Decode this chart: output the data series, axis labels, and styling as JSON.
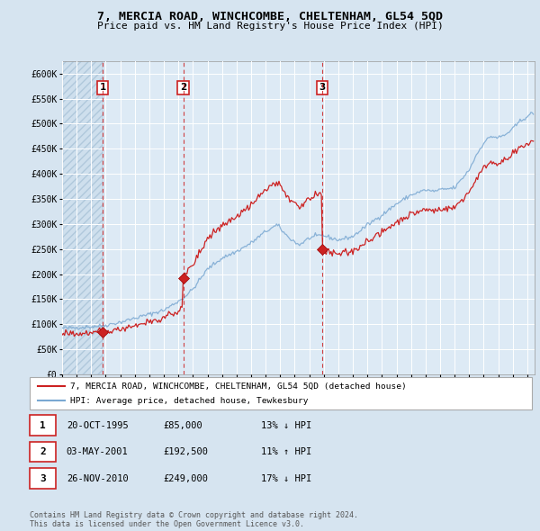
{
  "title": "7, MERCIA ROAD, WINCHCOMBE, CHELTENHAM, GL54 5QD",
  "subtitle": "Price paid vs. HM Land Registry's House Price Index (HPI)",
  "legend_line1": "7, MERCIA ROAD, WINCHCOMBE, CHELTENHAM, GL54 5QD (detached house)",
  "legend_line2": "HPI: Average price, detached house, Tewkesbury",
  "hpi_color": "#7aa8d2",
  "price_color": "#cc2222",
  "marker_color": "#cc2222",
  "bg_color": "#d6e4f0",
  "plot_bg": "#ddeaf5",
  "grid_color": "#ffffff",
  "purchases": [
    {
      "date": 1995.8,
      "price": 85000,
      "label": "1",
      "note": "20-OCT-1995",
      "amount": "£85,000",
      "hpi": "13% ↓ HPI"
    },
    {
      "date": 2001.33,
      "price": 192500,
      "label": "2",
      "note": "03-MAY-2001",
      "amount": "£192,500",
      "hpi": "11% ↑ HPI"
    },
    {
      "date": 2010.9,
      "price": 249000,
      "label": "3",
      "note": "26-NOV-2010",
      "amount": "£249,000",
      "hpi": "17% ↓ HPI"
    }
  ],
  "ylabel_ticks": [
    0,
    50000,
    100000,
    150000,
    200000,
    250000,
    300000,
    350000,
    400000,
    450000,
    500000,
    550000,
    600000
  ],
  "ylabel_labels": [
    "£0",
    "£50K",
    "£100K",
    "£150K",
    "£200K",
    "£250K",
    "£300K",
    "£350K",
    "£400K",
    "£450K",
    "£500K",
    "£550K",
    "£600K"
  ],
  "xlim": [
    1993.0,
    2025.5
  ],
  "ylim": [
    0,
    625000
  ],
  "footer": "Contains HM Land Registry data © Crown copyright and database right 2024.\nThis data is licensed under the Open Government Licence v3.0."
}
